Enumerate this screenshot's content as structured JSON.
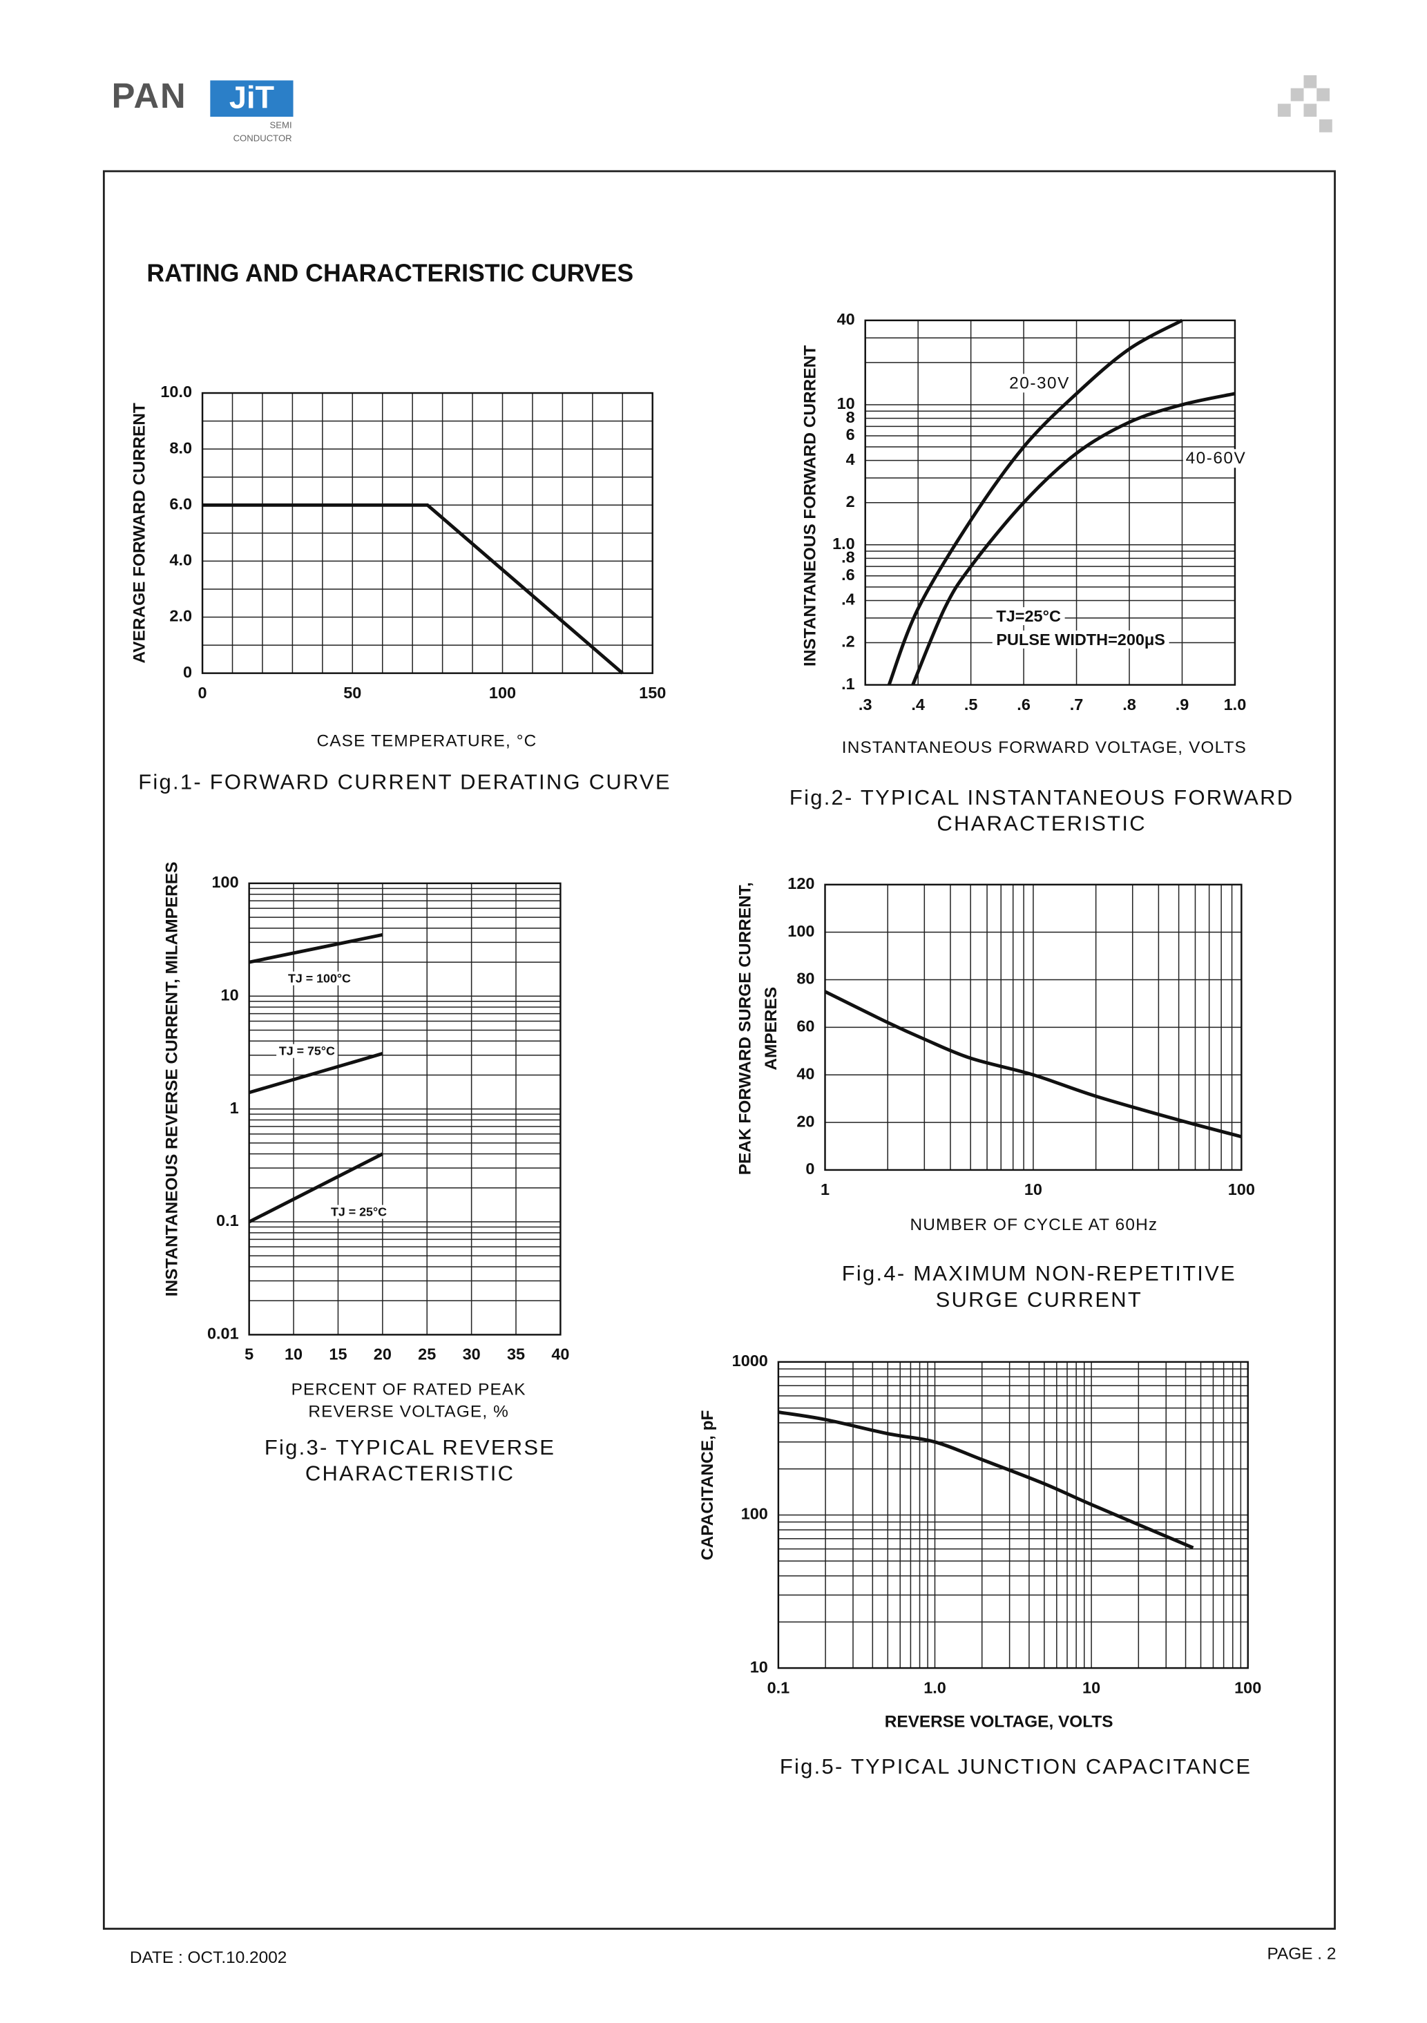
{
  "header": {
    "logo": {
      "left": "PAN",
      "box": "JiT",
      "sub1": "SEMI",
      "sub2": "CONDUCTOR"
    },
    "heading": "RATING AND CHARACTERISTIC CURVES"
  },
  "footer": {
    "date": "DATE : OCT.10.2002",
    "page": "PAGE . 2"
  },
  "chart_data": [
    {
      "type": "line",
      "title": [
        "Fig.1- FORWARD CURRENT DERATING CURVE"
      ],
      "xlabel": [
        "CASE TEMPERATURE, °C"
      ],
      "ylabel": [
        "AVERAGE FORWARD CURRENT"
      ],
      "xlim": [
        0,
        150
      ],
      "xticks": [
        0,
        50,
        100,
        150
      ],
      "ylim": [
        0,
        10
      ],
      "yticks": [
        0,
        {
          "value": 2,
          "label": "2.0"
        },
        {
          "value": 4,
          "label": "4.0"
        },
        {
          "value": 6,
          "label": "6.0"
        },
        {
          "value": 8,
          "label": "8.0"
        },
        {
          "value": 10,
          "label": "10.0"
        }
      ],
      "xgrid": [
        0,
        10,
        20,
        30,
        40,
        50,
        60,
        70,
        80,
        90,
        100,
        110,
        120,
        130,
        140,
        150
      ],
      "ygrid": [
        0,
        1,
        2,
        3,
        4,
        5,
        6,
        7,
        8,
        9,
        10
      ],
      "series": [
        {
          "color": "#111111",
          "x": [
            0,
            75,
            140
          ],
          "values": [
            6,
            6,
            0
          ]
        }
      ]
    },
    {
      "type": "line",
      "title": [
        "Fig.2- TYPICAL INSTANTANEOUS FORWARD",
        "CHARACTERISTIC"
      ],
      "xlabel": [
        "INSTANTANEOUS FORWARD VOLTAGE, VOLTS"
      ],
      "ylabel": [
        "INSTANTANEOUS FORWARD CURRENT"
      ],
      "yscale": "log",
      "xlim": [
        0.3,
        1.0
      ],
      "ylim": [
        0.1,
        40
      ],
      "xticks": [
        {
          "value": 0.3,
          "label": ".3"
        },
        {
          "value": 0.4,
          "label": ".4"
        },
        {
          "value": 0.5,
          "label": ".5"
        },
        {
          "value": 0.6,
          "label": ".6"
        },
        {
          "value": 0.7,
          "label": ".7"
        },
        {
          "value": 0.8,
          "label": ".8"
        },
        {
          "value": 0.9,
          "label": ".9"
        },
        {
          "value": 1.0,
          "label": "1.0"
        }
      ],
      "yticks": [
        {
          "value": 0.1,
          "label": ".1"
        },
        {
          "value": 0.2,
          "label": ".2"
        },
        {
          "value": 0.4,
          "label": ".4"
        },
        {
          "value": 0.6,
          "label": ".6"
        },
        {
          "value": 0.8,
          "label": ".8"
        },
        {
          "value": 1,
          "label": "1.0"
        },
        2,
        4,
        6,
        8,
        10,
        40
      ],
      "xgrid": [
        0.3,
        0.4,
        0.5,
        0.6,
        0.7,
        0.8,
        0.9,
        1.0
      ],
      "ygrid": [
        0.1,
        0.2,
        0.3,
        0.4,
        0.5,
        0.6,
        0.7,
        0.8,
        0.9,
        1,
        2,
        3,
        4,
        5,
        6,
        7,
        8,
        9,
        10,
        20,
        30,
        40
      ],
      "annotations": [
        "TJ=25°C",
        "PULSE WIDTH=200μS"
      ],
      "series": [
        {
          "name": "20-30V",
          "color": "#111111",
          "x": [
            0.345,
            0.4,
            0.5,
            0.6,
            0.7,
            0.8,
            0.9
          ],
          "values": [
            0.1,
            0.35,
            1.5,
            5,
            12,
            25,
            40
          ]
        },
        {
          "name": "40-60V",
          "color": "#111111",
          "x": [
            0.39,
            0.45,
            0.5,
            0.6,
            0.7,
            0.8,
            0.9,
            1.0
          ],
          "values": [
            0.1,
            0.35,
            0.7,
            2,
            4.5,
            7.5,
            10,
            12
          ]
        }
      ]
    },
    {
      "type": "line",
      "title": [
        "Fig.3- TYPICAL REVERSE",
        "CHARACTERISTIC"
      ],
      "xlabel": [
        "PERCENT OF RATED PEAK",
        "REVERSE VOLTAGE, %"
      ],
      "ylabel": [
        "INSTANTANEOUS REVERSE CURRENT, MILAMPERES"
      ],
      "yscale": "log",
      "xlim": [
        5,
        40
      ],
      "ylim": [
        0.01,
        100
      ],
      "xticks": [
        5,
        10,
        15,
        20,
        25,
        30,
        35,
        40
      ],
      "yticks": [
        0.01,
        0.1,
        1,
        10,
        100
      ],
      "xgrid": [
        5,
        10,
        15,
        20,
        25,
        30,
        35,
        40
      ],
      "ygrid": [
        0.01,
        0.02,
        0.03,
        0.04,
        0.05,
        0.06,
        0.07,
        0.08,
        0.09,
        0.1,
        0.2,
        0.3,
        0.4,
        0.5,
        0.6,
        0.7,
        0.8,
        0.9,
        1,
        2,
        3,
        4,
        5,
        6,
        7,
        8,
        9,
        10,
        20,
        30,
        40,
        50,
        60,
        70,
        80,
        90,
        100
      ],
      "series": [
        {
          "name": "TJ = 100°C",
          "color": "#111111",
          "x": [
            5,
            20
          ],
          "values": [
            20,
            35
          ]
        },
        {
          "name": "TJ = 75°C",
          "color": "#111111",
          "x": [
            5,
            20
          ],
          "values": [
            1.4,
            3.1
          ]
        },
        {
          "name": "TJ = 25°C",
          "color": "#111111",
          "x": [
            5,
            20
          ],
          "values": [
            0.1,
            0.4
          ]
        }
      ]
    },
    {
      "type": "line",
      "title": [
        "Fig.4- MAXIMUM NON-REPETITIVE",
        "SURGE CURRENT"
      ],
      "xlabel": [
        "NUMBER OF CYCLE AT 60Hz"
      ],
      "ylabel": [
        "PEAK FORWARD SURGE CURRENT,",
        "AMPERES"
      ],
      "xscale": "log",
      "xlim": [
        1,
        100
      ],
      "ylim": [
        0,
        120
      ],
      "xticks": [
        1,
        10,
        100
      ],
      "yticks": [
        0,
        20,
        40,
        60,
        80,
        100,
        120
      ],
      "xgrid": [
        1,
        2,
        3,
        4,
        5,
        6,
        7,
        8,
        9,
        10,
        20,
        30,
        40,
        50,
        60,
        70,
        80,
        90,
        100
      ],
      "ygrid": [
        0,
        20,
        40,
        60,
        80,
        100,
        120
      ],
      "series": [
        {
          "color": "#111111",
          "x": [
            1,
            2,
            3,
            5,
            10,
            20,
            50,
            100
          ],
          "values": [
            75,
            62,
            55,
            47,
            40,
            31,
            21,
            14
          ]
        }
      ]
    },
    {
      "type": "line",
      "title": [
        "Fig.5- TYPICAL JUNCTION CAPACITANCE"
      ],
      "xlabel": [
        "REVERSE VOLTAGE, VOLTS"
      ],
      "ylabel": [
        "CAPACITANCE, pF"
      ],
      "xscale": "log",
      "yscale": "log",
      "xlim": [
        0.1,
        100
      ],
      "ylim": [
        10,
        1000
      ],
      "xticks": [
        0.1,
        {
          "value": 1,
          "label": "1.0"
        },
        10,
        100
      ],
      "yticks": [
        10,
        100,
        1000
      ],
      "xgrid": [
        0.1,
        0.2,
        0.3,
        0.4,
        0.5,
        0.6,
        0.7,
        0.8,
        0.9,
        1,
        2,
        3,
        4,
        5,
        6,
        7,
        8,
        9,
        10,
        20,
        30,
        40,
        50,
        60,
        70,
        80,
        90,
        100
      ],
      "ygrid": [
        10,
        20,
        30,
        40,
        50,
        60,
        70,
        80,
        90,
        100,
        200,
        300,
        400,
        500,
        600,
        700,
        800,
        900,
        1000
      ],
      "series": [
        {
          "color": "#111111",
          "x": [
            0.1,
            0.2,
            0.5,
            1,
            2,
            5,
            10,
            44.7
          ],
          "values": [
            470,
            420,
            340,
            300,
            230,
            160,
            117,
            61
          ]
        }
      ]
    }
  ]
}
